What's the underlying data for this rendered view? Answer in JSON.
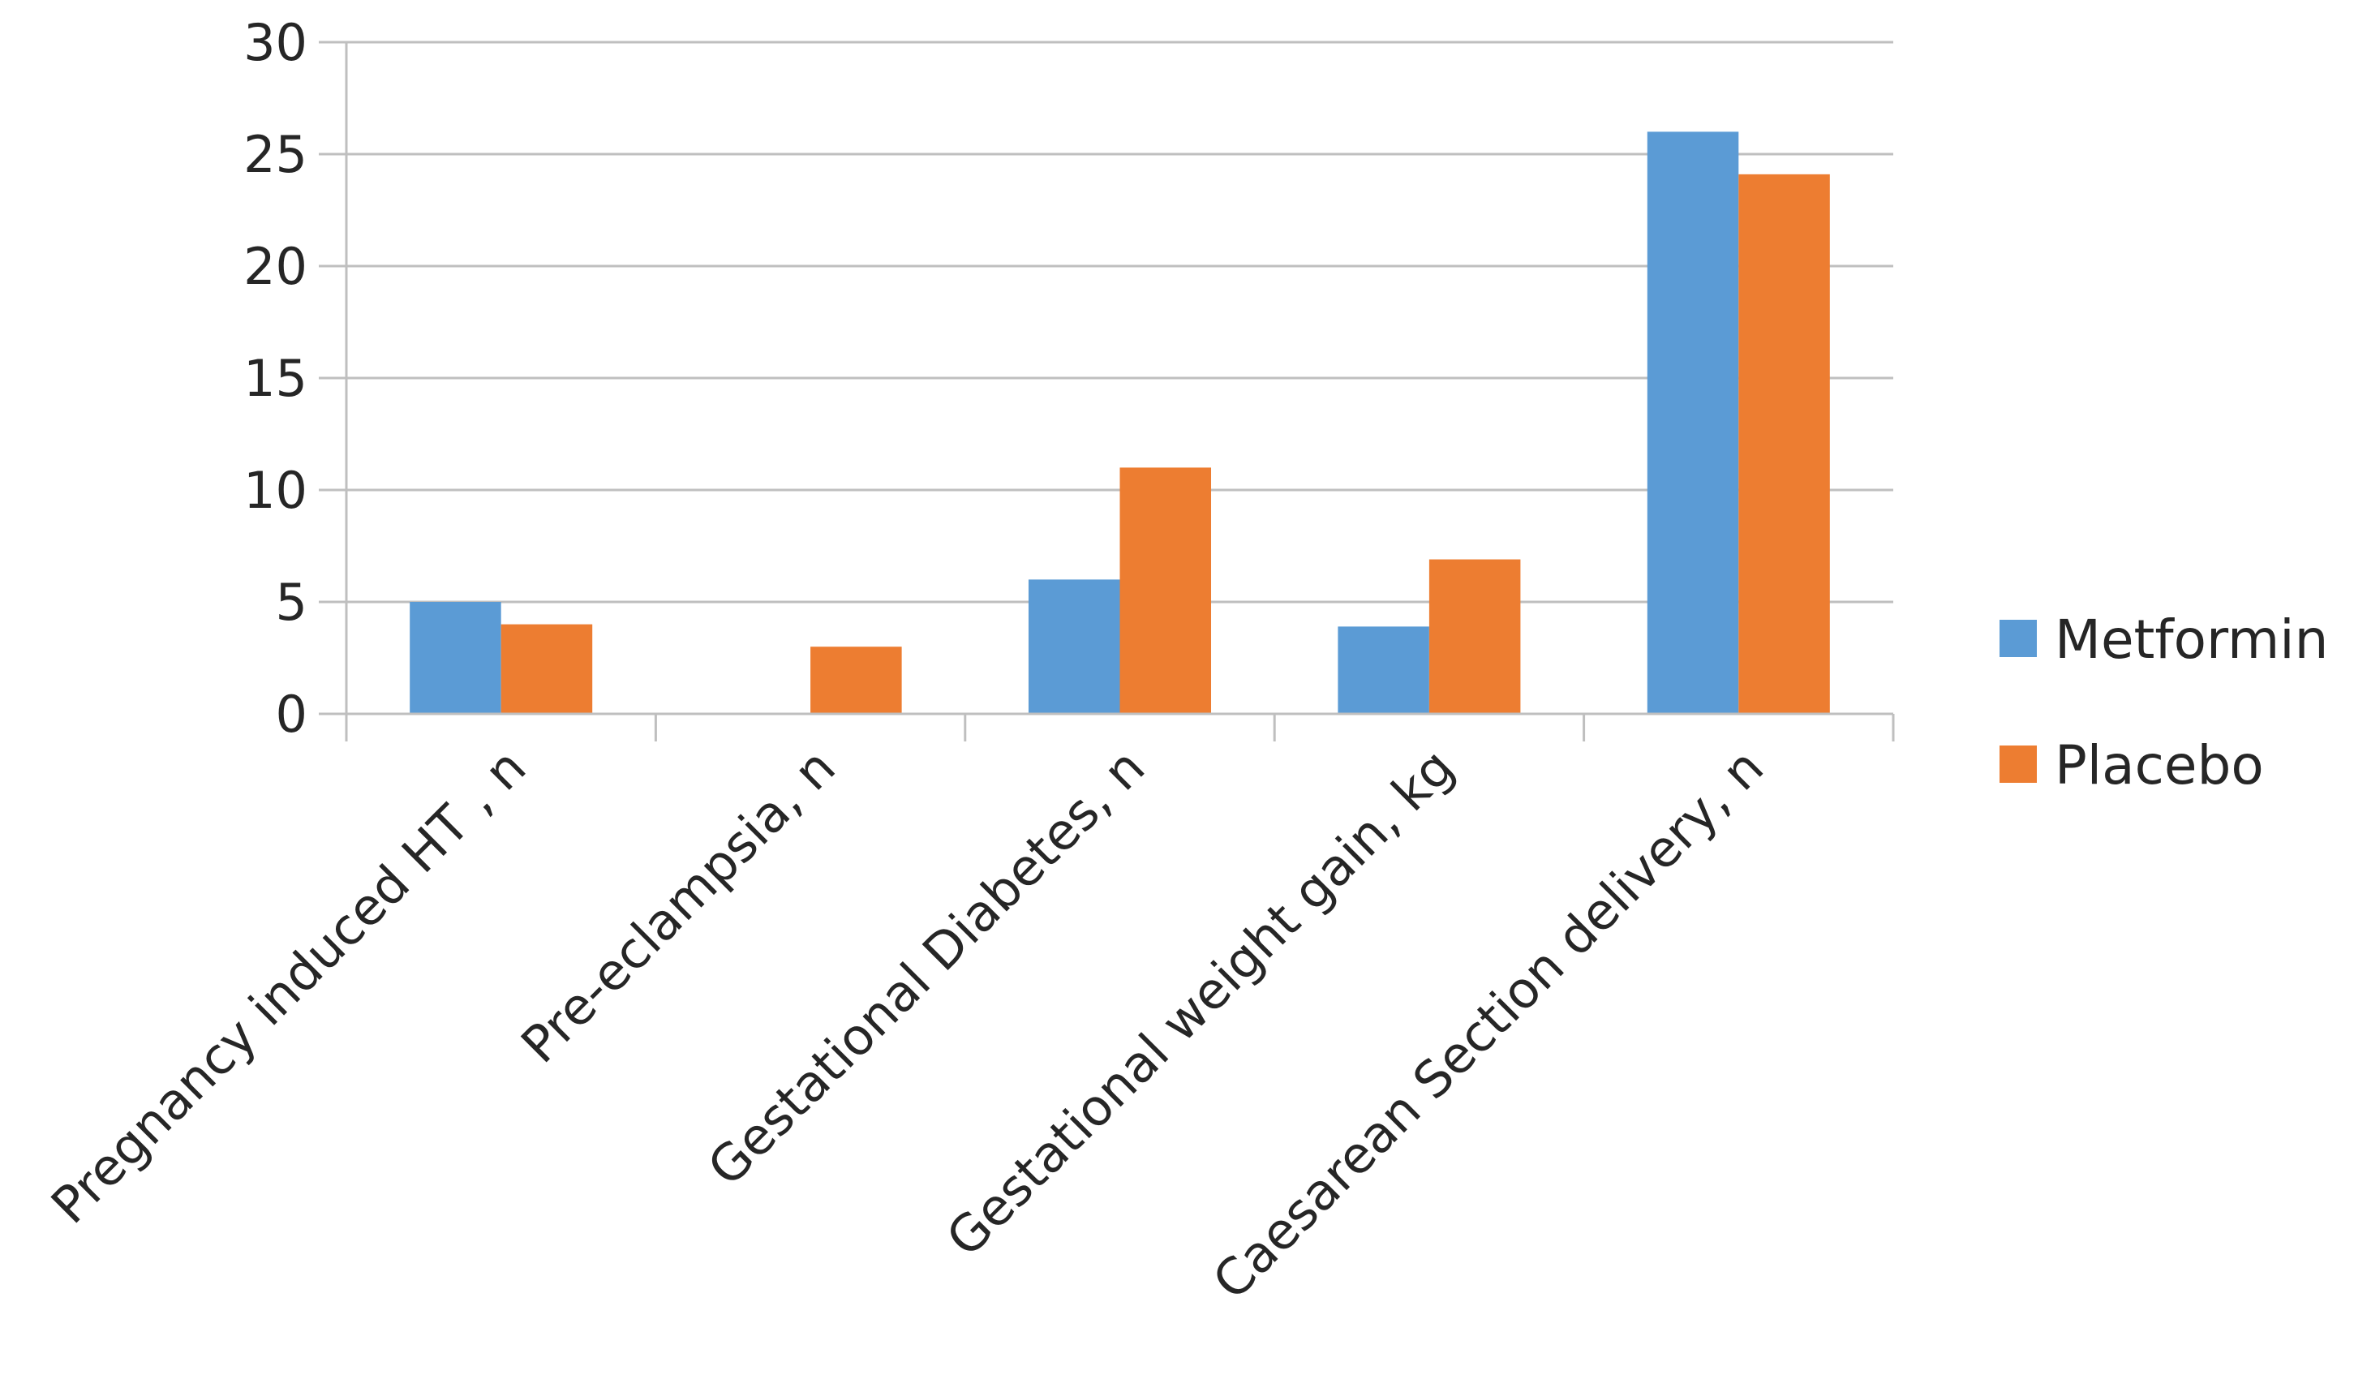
{
  "chart_data": {
    "type": "bar",
    "title": "",
    "xlabel": "",
    "ylabel": "",
    "categories": [
      "Pregnancy induced HT , n",
      "Pre-eclampsia, n",
      "Gestational Diabetes, n",
      "Gestational weight gain, kg",
      "Caesarean Section delivery, n"
    ],
    "series": [
      {
        "name": "Metformin",
        "color": "#5B9BD5",
        "values": [
          5,
          0,
          6,
          3.9,
          26
        ]
      },
      {
        "name": "Placebo",
        "color": "#ED7D31",
        "values": [
          4,
          3,
          11,
          6.9,
          24.1
        ]
      }
    ],
    "ylim": [
      0,
      30
    ],
    "yticks": [
      "0",
      "5",
      "10",
      "15",
      "20",
      "25",
      "30"
    ],
    "grid": true,
    "legend_position": "right"
  }
}
